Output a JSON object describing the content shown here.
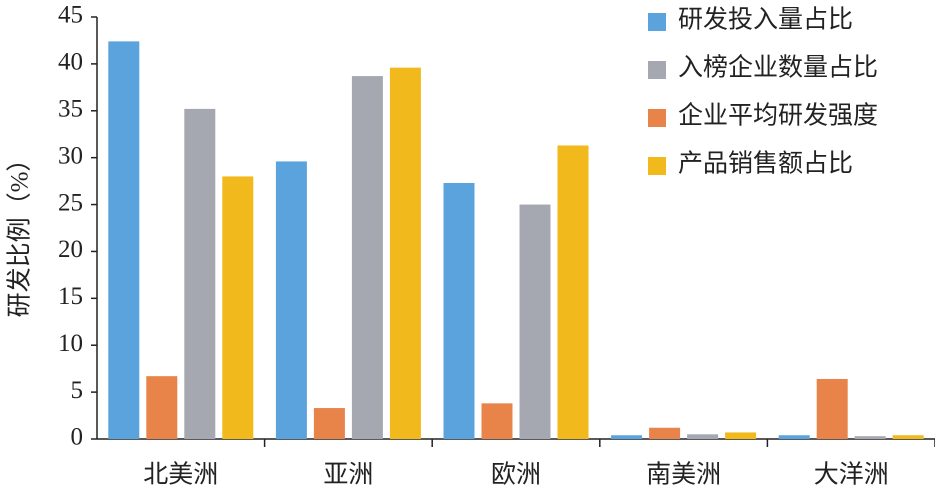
{
  "chart_data": {
    "type": "bar",
    "y_label": "研发比例（%）",
    "categories": [
      "北美洲",
      "亚洲",
      "欧洲",
      "南美洲",
      "大洋洲"
    ],
    "series": [
      {
        "name": "研发投入量占比",
        "color": "#5ba3dc",
        "values": [
          42.4,
          29.6,
          27.3,
          0.4,
          0.4
        ]
      },
      {
        "name": "企业平均研发强度",
        "color": "#e8834a",
        "values": [
          6.7,
          3.3,
          3.8,
          1.2,
          6.4
        ]
      },
      {
        "name": "入榜企业数量占比",
        "color": "#a5a8b0",
        "values": [
          35.2,
          38.7,
          25.0,
          0.5,
          0.3
        ]
      },
      {
        "name": "产品销售额占比",
        "color": "#f2b91c",
        "values": [
          28.0,
          39.6,
          31.3,
          0.7,
          0.4
        ]
      }
    ],
    "legend_order": [
      0,
      2,
      1,
      3
    ],
    "legend_position": "top-right",
    "ylim": [
      0,
      45
    ],
    "yticks": [
      0,
      5,
      10,
      15,
      20,
      25,
      30,
      35,
      40,
      45
    ]
  }
}
